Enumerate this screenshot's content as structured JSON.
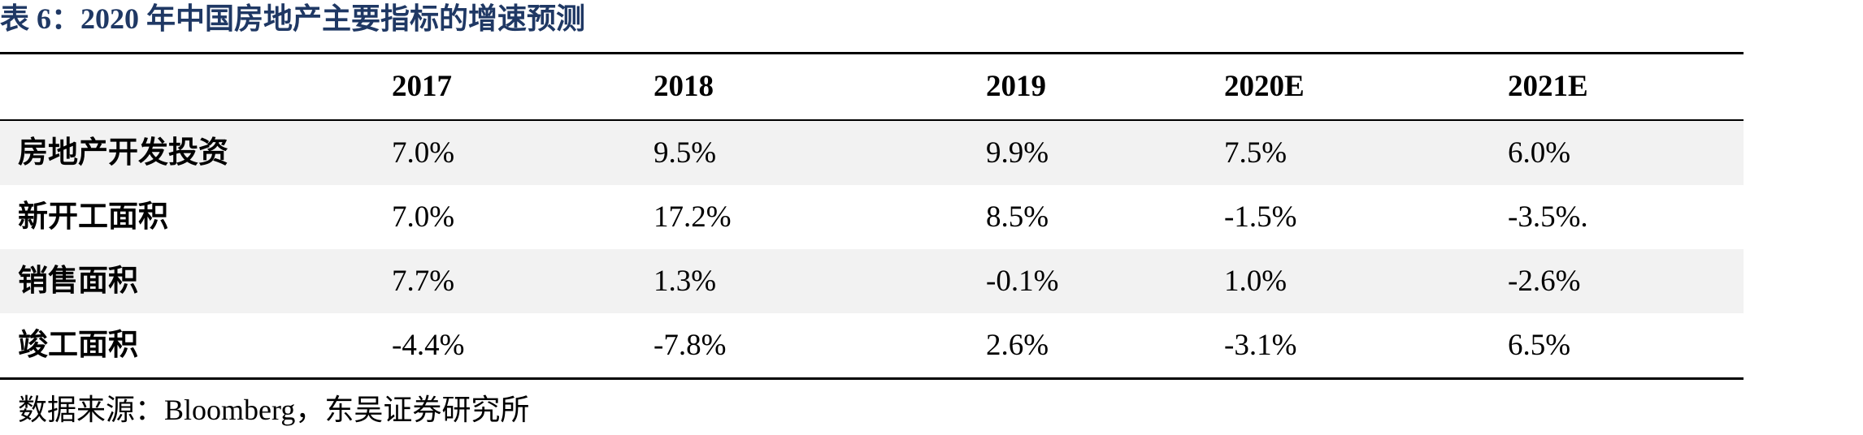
{
  "title": "表 6：2020 年中国房地产主要指标的增速预测",
  "table": {
    "columns": [
      "2017",
      "2018",
      "2019",
      "2020E",
      "2021E"
    ],
    "rows": [
      {
        "label": "房地产开发投资",
        "cells": [
          "7.0%",
          "9.5%",
          "9.9%",
          "7.5%",
          "6.0%"
        ]
      },
      {
        "label": "新开工面积",
        "cells": [
          "7.0%",
          "17.2%",
          "8.5%",
          "-1.5%",
          "-3.5%."
        ]
      },
      {
        "label": "销售面积",
        "cells": [
          "7.7%",
          "1.3%",
          "-0.1%",
          "1.0%",
          "-2.6%"
        ]
      },
      {
        "label": "竣工面积",
        "cells": [
          "-4.4%",
          "-7.8%",
          "2.6%",
          "-3.1%",
          "6.5%"
        ]
      }
    ]
  },
  "source": "数据来源：Bloomberg，东吴证券研究所"
}
